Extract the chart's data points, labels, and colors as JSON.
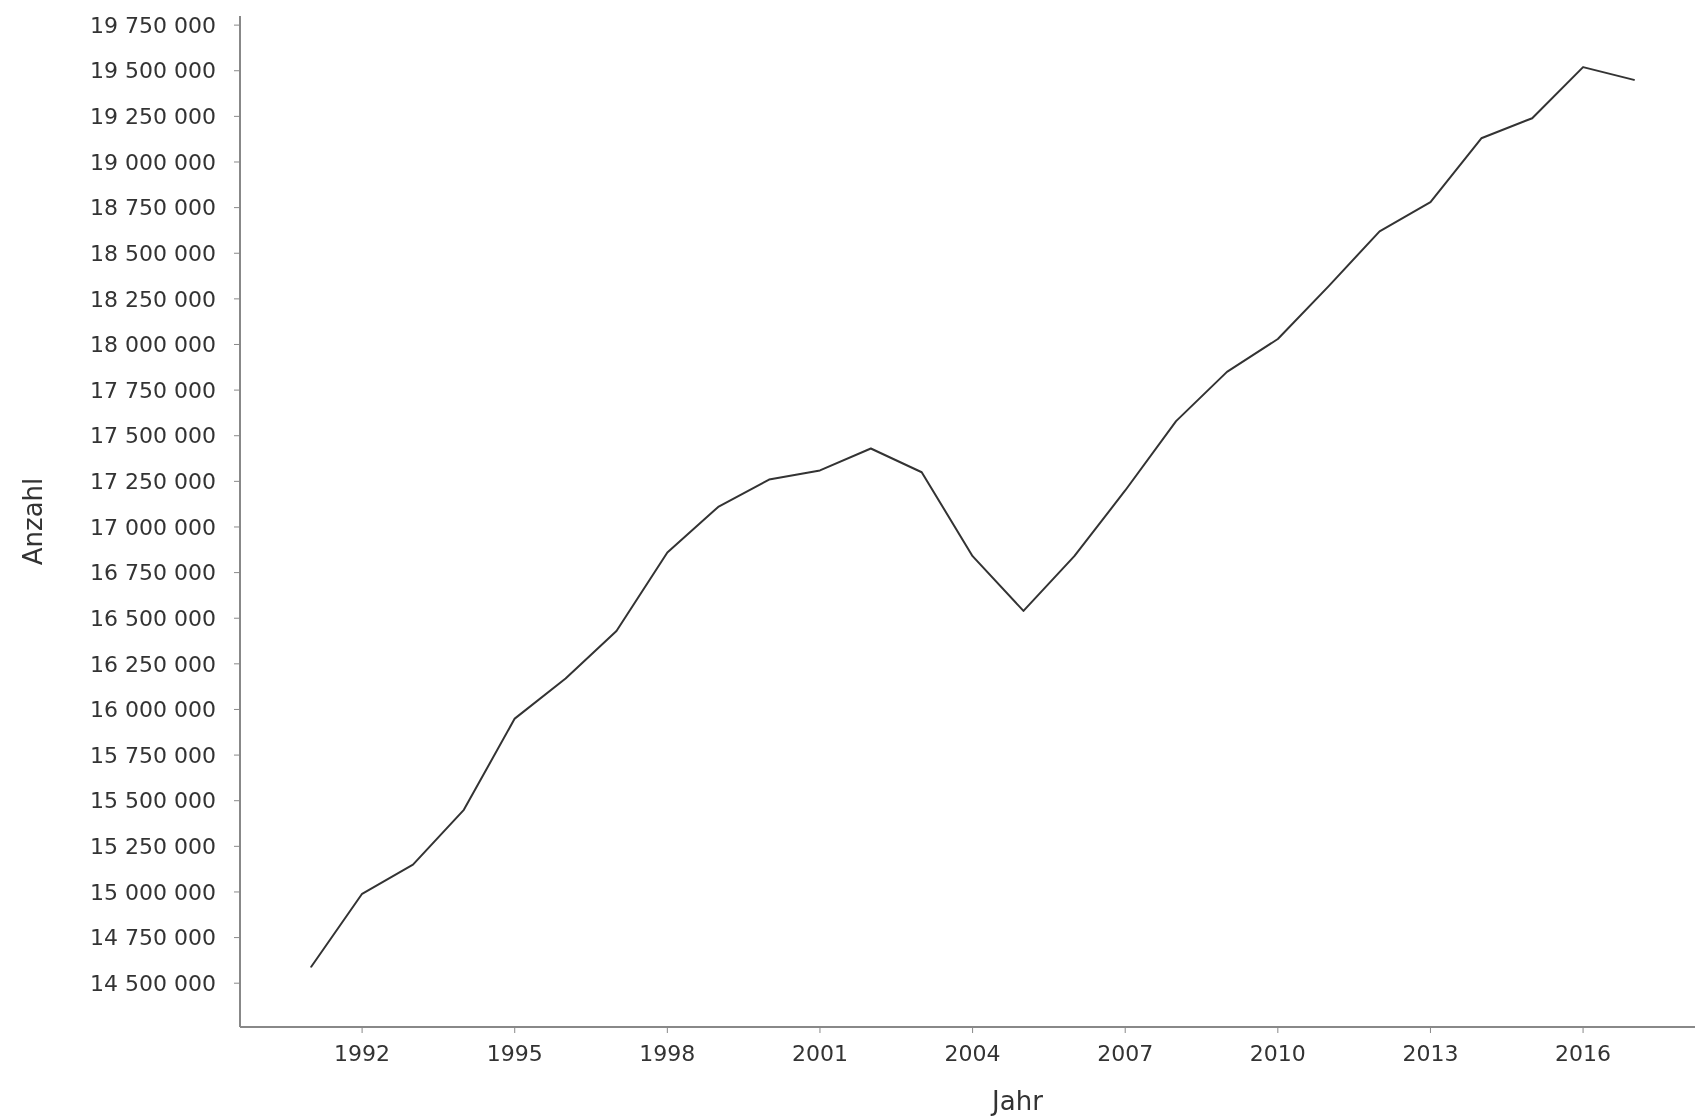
{
  "chart_data": {
    "type": "line",
    "xlabel": "Jahr",
    "ylabel": "Anzahl",
    "x": [
      1991,
      1992,
      1993,
      1994,
      1995,
      1996,
      1997,
      1998,
      1999,
      2000,
      2001,
      2002,
      2003,
      2004,
      2005,
      2006,
      2007,
      2008,
      2009,
      2010,
      2011,
      2012,
      2013,
      2014,
      2015,
      2016,
      2017
    ],
    "series": [
      {
        "color": "#333333",
        "values": [
          14590000,
          14990000,
          15150000,
          15450000,
          15950000,
          16170000,
          16430000,
          16860000,
          17110000,
          17260000,
          17310000,
          17430000,
          17300000,
          16840000,
          16540000,
          16840000,
          17200000,
          17580000,
          17850000,
          18030000,
          18320000,
          18620000,
          18780000,
          19130000,
          19240000,
          19520000,
          19450000
        ]
      }
    ],
    "xlim": [
      1989.6,
      2018.2
    ],
    "xticks": [
      1992,
      1995,
      1998,
      2001,
      2004,
      2007,
      2010,
      2013,
      2016
    ],
    "ylim": [
      14260000,
      19800000
    ],
    "yticks": [
      {
        "value": 14500000,
        "label": "14 500 000"
      },
      {
        "value": 14750000,
        "label": "14 750 000"
      },
      {
        "value": 15000000,
        "label": "15 000 000"
      },
      {
        "value": 15250000,
        "label": "15 250 000"
      },
      {
        "value": 15500000,
        "label": "15 500 000"
      },
      {
        "value": 15750000,
        "label": "15 750 000"
      },
      {
        "value": 16000000,
        "label": "16 000 000"
      },
      {
        "value": 16250000,
        "label": "16 250 000"
      },
      {
        "value": 16500000,
        "label": "16 500 000"
      },
      {
        "value": 16750000,
        "label": "16 750 000"
      },
      {
        "value": 17000000,
        "label": "17 000 000"
      },
      {
        "value": 17250000,
        "label": "17 250 000"
      },
      {
        "value": 17500000,
        "label": "17 500 000"
      },
      {
        "value": 17750000,
        "label": "17 750 000"
      },
      {
        "value": 18000000,
        "label": "18 000 000"
      },
      {
        "value": 18250000,
        "label": "18 250 000"
      },
      {
        "value": 18500000,
        "label": "18 500 000"
      },
      {
        "value": 18750000,
        "label": "18 750 000"
      },
      {
        "value": 19000000,
        "label": "19 000 000"
      },
      {
        "value": 19250000,
        "label": "19 250 000"
      },
      {
        "value": 19500000,
        "label": "19 500 000"
      },
      {
        "value": 19750000,
        "label": "19 750 000"
      }
    ],
    "grid": false,
    "marker": "none",
    "line_style": "solid"
  }
}
